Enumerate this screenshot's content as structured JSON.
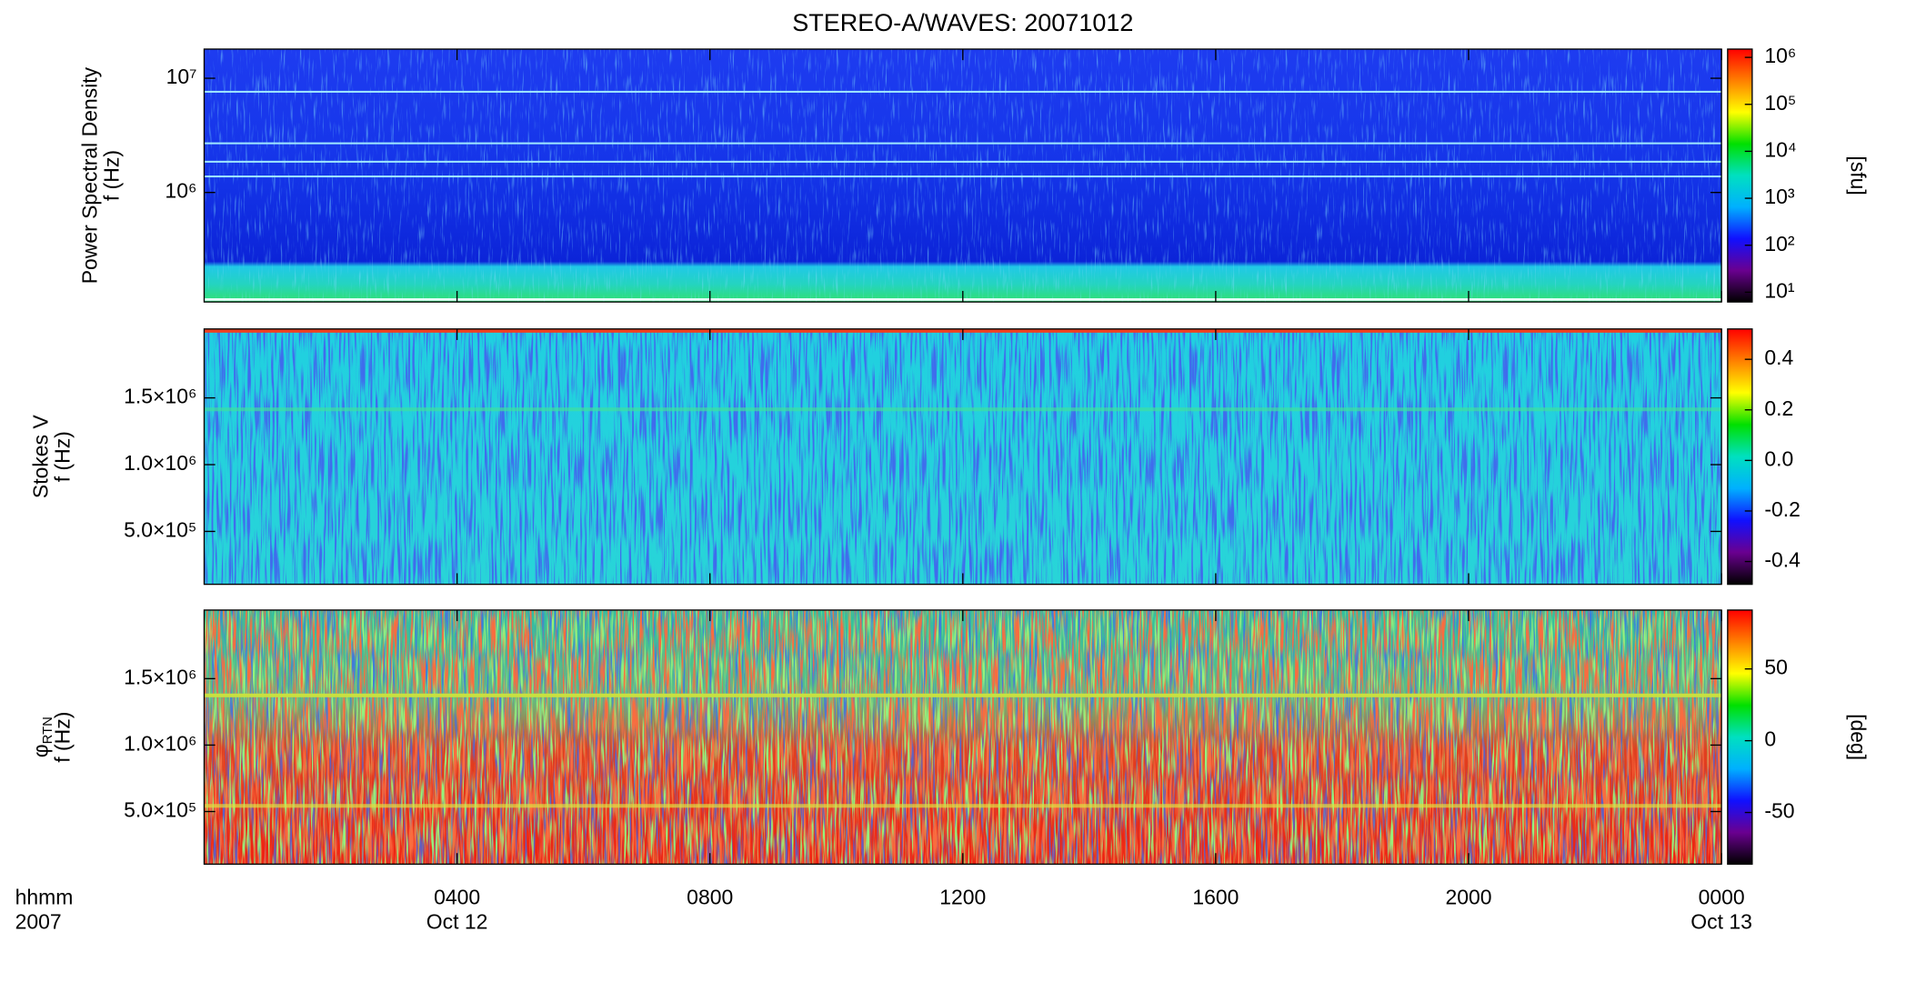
{
  "chart_data": [
    {
      "type": "spectrogram",
      "ylabel": [
        "Power Spectral Density",
        "f (Hz)"
      ],
      "log_y": true,
      "ylim": [
        110000,
        18000000
      ],
      "yticks": [
        {
          "value": 1000000,
          "label": "10⁶"
        },
        {
          "value": 10000000,
          "label": "10⁷"
        }
      ],
      "colorbar": {
        "label": "[sfu]",
        "log": true,
        "lim": [
          6.2,
          1500000
        ],
        "ticks": [
          {
            "value": 10,
            "label": "10¹"
          },
          {
            "value": 100,
            "label": "10²"
          },
          {
            "value": 1000,
            "label": "10³"
          },
          {
            "value": 10000,
            "label": "10⁴"
          },
          {
            "value": 100000,
            "label": "10⁵"
          },
          {
            "value": 1000000,
            "label": "10⁶"
          }
        ],
        "colors": [
          "#000000",
          "#6a0090",
          "#1010ff",
          "#00b0ff",
          "#00e0c0",
          "#00e000",
          "#ffff00",
          "#ff8000",
          "#ff0000"
        ]
      }
    },
    {
      "type": "spectrogram",
      "ylabel": [
        "Stokes V",
        "f (Hz)"
      ],
      "log_y": false,
      "ylim": [
        104000,
        2016000
      ],
      "yticks": [
        {
          "value": 500000,
          "label": "5.0×10⁵"
        },
        {
          "value": 1000000,
          "label": "1.0×10⁶"
        },
        {
          "value": 1500000,
          "label": "1.5×10⁶"
        }
      ],
      "colorbar": {
        "label": "",
        "log": false,
        "lim": [
          -0.49,
          0.52
        ],
        "ticks": [
          -0.4,
          -0.2,
          {
            "value": 0,
            "label": "0.0"
          },
          0.2,
          0.4
        ],
        "colors": [
          "#000000",
          "#6a0090",
          "#1010ff",
          "#00b0ff",
          "#00e0c0",
          "#00e000",
          "#ffff00",
          "#ff8000",
          "#ff0000"
        ]
      }
    },
    {
      "type": "spectrogram",
      "ylabel": [
        "φ",
        "f (Hz)"
      ],
      "ylabel_subscript": "RTN",
      "log_y": false,
      "ylim": [
        104000,
        2016000
      ],
      "yticks": [
        {
          "value": 500000,
          "label": "5.0×10⁵"
        },
        {
          "value": 1000000,
          "label": "1.0×10⁶"
        },
        {
          "value": 1500000,
          "label": "1.5×10⁶"
        }
      ],
      "colorbar": {
        "label": "[deg]",
        "log": false,
        "lim": [
          -86,
          91
        ],
        "ticks": [
          -50,
          0,
          50
        ],
        "colors": [
          "#000000",
          "#6a0090",
          "#1010ff",
          "#00b0ff",
          "#00e0c0",
          "#00e000",
          "#ffff00",
          "#ff8000",
          "#ff0000"
        ]
      }
    }
  ],
  "title": "STEREO-A/WAVES: 20071012",
  "x_axis": {
    "unit_label": "hhmm",
    "year_label": "2007",
    "xlim": [
      0,
      24
    ],
    "xticks": [
      {
        "value": 4,
        "label": "0400"
      },
      {
        "value": 8,
        "label": "0800"
      },
      {
        "value": 12,
        "label": "1200"
      },
      {
        "value": 16,
        "label": "1600"
      },
      {
        "value": 20,
        "label": "2000"
      },
      {
        "value": 24,
        "label": "0000"
      }
    ],
    "date_labels": [
      {
        "value": 4,
        "label": "Oct 12"
      },
      {
        "value": 24,
        "label": "Oct 13"
      }
    ]
  }
}
